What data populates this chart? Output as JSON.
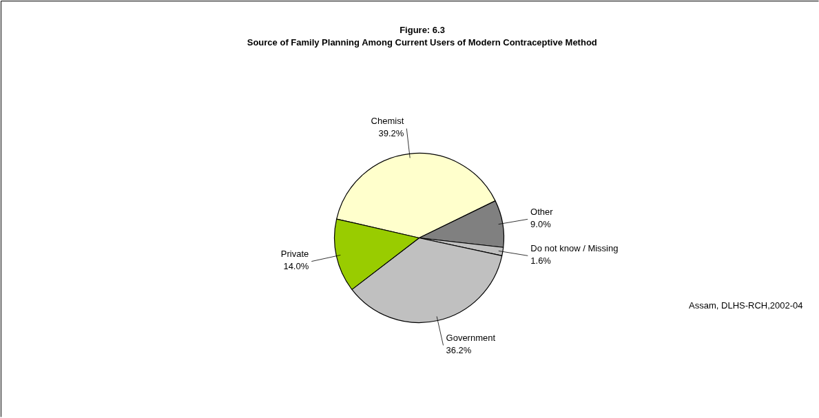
{
  "chart_data": {
    "type": "pie",
    "title": "Figure: 6.3",
    "subtitle": "Source of Family Planning Among Current Users of Modern Contraceptive Method",
    "categories": [
      "Chemist",
      "Other",
      "Do not know / Missing",
      "Government",
      "Private"
    ],
    "values": [
      39.2,
      9.0,
      1.6,
      36.2,
      14.0
    ],
    "value_labels": [
      "39.2%",
      "9.0%",
      "1.6%",
      "36.2%",
      "14.0%"
    ],
    "colors": [
      "#ffffcc",
      "#808080",
      "#c0c0c0",
      "#c0c0c0",
      "#99cc00"
    ],
    "annotations": [
      "Assam, DLHS-RCH,2002-04"
    ]
  }
}
